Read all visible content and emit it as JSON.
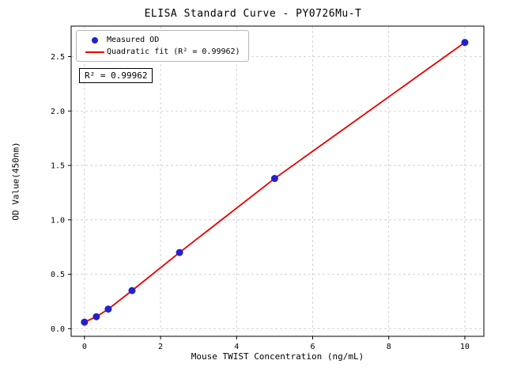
{
  "chart_data": {
    "type": "scatter",
    "title": "ELISA Standard Curve - PY0726Mu-T",
    "xlabel": "Mouse TWIST Concentration (ng/mL)",
    "ylabel": "OD Value(450nm)",
    "x": [
      0,
      0.3125,
      0.625,
      1.25,
      2.5,
      5,
      10
    ],
    "y": [
      0.06,
      0.11,
      0.18,
      0.35,
      0.7,
      1.38,
      2.63
    ],
    "fit": {
      "type": "quadratic",
      "r_squared": "0.99962"
    },
    "xticks": [
      0,
      2,
      4,
      6,
      8,
      10
    ],
    "yticks": [
      0.0,
      0.5,
      1.0,
      1.5,
      2.0,
      2.5
    ],
    "xlim": [
      -0.35,
      10.5
    ],
    "ylim": [
      -0.07,
      2.78
    ],
    "grid": true,
    "legend": {
      "position": "upper-left",
      "entries": [
        {
          "label": "Measured OD",
          "marker": "dot",
          "color": "#2222cc"
        },
        {
          "label": "Quadratic fit (R² = 0.99962)",
          "marker": "line",
          "color": "#e60000"
        }
      ]
    },
    "annotation": "R² = 0.99962",
    "colors": {
      "points": "#2222cc",
      "line": "#e60000",
      "grid": "#c9c9c9",
      "axis": "#000000"
    }
  }
}
